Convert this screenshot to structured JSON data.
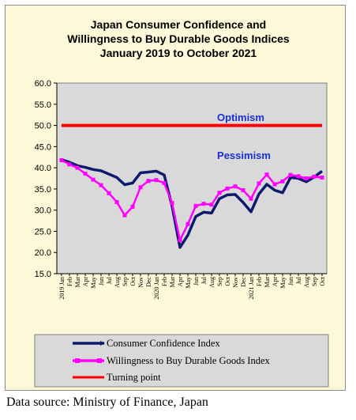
{
  "chart_data": {
    "type": "line",
    "title": [
      "Japan Consumer Confidence and",
      "Willingness to Buy Durable Goods Indices",
      "January 2019 to October 2021"
    ],
    "ylim": [
      15.0,
      60.0
    ],
    "yticks": [
      "60.0",
      "55.0",
      "50.0",
      "45.0",
      "40.0",
      "35.0",
      "30.0",
      "25.0",
      "20.0",
      "15.0"
    ],
    "grid": false,
    "x_labels": [
      "2019 Jan",
      "Feb",
      "Mar",
      "Apr",
      "May",
      "Jun",
      "Jul",
      "Aug",
      "Sep",
      "Oct",
      "Nov",
      "Dec",
      "2020 Jan",
      "Feb",
      "Mar",
      "Apr",
      "May",
      "Jun",
      "Jul",
      "Aug",
      "Sep",
      "Oct",
      "Nov",
      "Dec",
      "2021 Jan",
      "Feb",
      "Mar",
      "Apr",
      "May",
      "Jun",
      "Jul",
      "Aug",
      "Sep",
      "Oct"
    ],
    "series": [
      {
        "name": "Consumer Confidence Index",
        "color": "#0f1a6e",
        "marker": "none",
        "values": [
          41.9,
          41.3,
          40.5,
          40.1,
          39.6,
          39.3,
          38.5,
          37.7,
          36.0,
          36.4,
          38.8,
          39.0,
          39.2,
          38.3,
          30.9,
          21.2,
          24.1,
          28.5,
          29.5,
          29.3,
          32.7,
          33.6,
          33.7,
          31.8,
          29.6,
          33.8,
          36.1,
          34.7,
          34.1,
          37.7,
          37.5,
          36.7,
          37.8,
          39.2
        ]
      },
      {
        "name": "Willingness to Buy Durable Goods Index",
        "color": "#ff00ff",
        "marker": "square",
        "values": [
          41.8,
          40.8,
          40.0,
          38.6,
          37.2,
          35.9,
          34.0,
          31.9,
          28.8,
          30.8,
          35.4,
          36.9,
          37.1,
          36.4,
          31.7,
          22.9,
          26.7,
          31.0,
          31.5,
          31.3,
          34.1,
          35.1,
          35.6,
          34.7,
          32.7,
          36.3,
          38.4,
          36.1,
          36.8,
          38.3,
          38.0,
          37.5,
          37.9,
          37.7
        ]
      },
      {
        "name": "Turning point",
        "color": "#ff0000",
        "marker": "none",
        "values": [
          50.0,
          50.0,
          50.0,
          50.0,
          50.0,
          50.0,
          50.0,
          50.0,
          50.0,
          50.0,
          50.0,
          50.0,
          50.0,
          50.0,
          50.0,
          50.0,
          50.0,
          50.0,
          50.0,
          50.0,
          50.0,
          50.0,
          50.0,
          50.0,
          50.0,
          50.0,
          50.0,
          50.0,
          50.0,
          50.0,
          50.0,
          50.0,
          50.0,
          50.0
        ]
      }
    ],
    "annotations": [
      "Optimism",
      "Pessimism"
    ],
    "legend_position": "bottom"
  },
  "footer": {
    "source": "Data source: Ministry of Finance, Japan"
  }
}
